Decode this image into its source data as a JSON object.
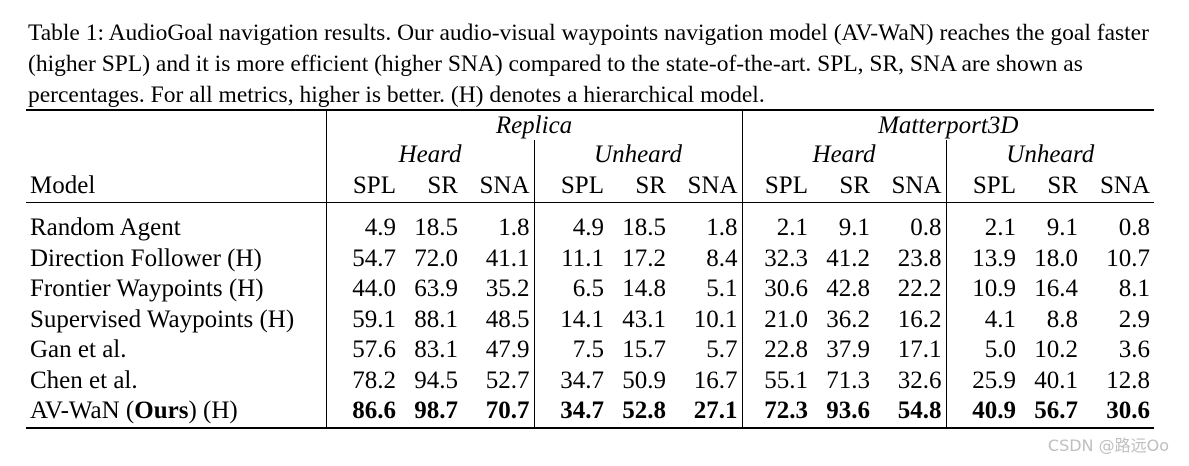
{
  "caption": "Table 1: AudioGoal navigation results. Our audio-visual waypoints navigation model (AV-WaN) reaches the goal faster (higher SPL) and it is more efficient (higher SNA) compared to the state-of-the-art. SPL, SR, SNA are shown as percentages. For all metrics, higher is better. (H) denotes a hierarchical model.",
  "table": {
    "model_header": "Model",
    "datasets": [
      "Replica",
      "Matterport3D"
    ],
    "conditions": [
      "Heard",
      "Unheard",
      "Heard",
      "Unheard"
    ],
    "metrics": [
      "SPL",
      "SR",
      "SNA",
      "SPL",
      "SR",
      "SNA",
      "SPL",
      "SR",
      "SNA",
      "SPL",
      "SR",
      "SNA"
    ],
    "rows": [
      {
        "model": "Random Agent",
        "values": [
          "4.9",
          "18.5",
          "1.8",
          "4.9",
          "18.5",
          "1.8",
          "2.1",
          "9.1",
          "0.8",
          "2.1",
          "9.1",
          "0.8"
        ]
      },
      {
        "model": "Direction Follower (H)",
        "values": [
          "54.7",
          "72.0",
          "41.1",
          "11.1",
          "17.2",
          "8.4",
          "32.3",
          "41.2",
          "23.8",
          "13.9",
          "18.0",
          "10.7"
        ]
      },
      {
        "model": "Frontier Waypoints (H)",
        "values": [
          "44.0",
          "63.9",
          "35.2",
          "6.5",
          "14.8",
          "5.1",
          "30.6",
          "42.8",
          "22.2",
          "10.9",
          "16.4",
          "8.1"
        ]
      },
      {
        "model": "Supervised Waypoints (H)",
        "values": [
          "59.1",
          "88.1",
          "48.5",
          "14.1",
          "43.1",
          "10.1",
          "21.0",
          "36.2",
          "16.2",
          "4.1",
          "8.8",
          "2.9"
        ]
      },
      {
        "model": "Gan et al.",
        "values": [
          "57.6",
          "83.1",
          "47.9",
          "7.5",
          "15.7",
          "5.7",
          "22.8",
          "37.9",
          "17.1",
          "5.0",
          "10.2",
          "3.6"
        ]
      },
      {
        "model": "Chen et al.",
        "values": [
          "78.2",
          "94.5",
          "52.7",
          "34.7",
          "50.9",
          "16.7",
          "55.1",
          "71.3",
          "32.6",
          "25.9",
          "40.1",
          "12.8"
        ]
      }
    ],
    "ours_row": {
      "model_prefix": "AV-WaN (",
      "model_bold": "Ours",
      "model_suffix": ") (H)",
      "values": [
        "86.6",
        "98.7",
        "70.7",
        "34.7",
        "52.8",
        "27.1",
        "72.3",
        "93.6",
        "54.8",
        "40.9",
        "56.7",
        "30.6"
      ]
    }
  },
  "watermark": "CSDN @路远Oo"
}
